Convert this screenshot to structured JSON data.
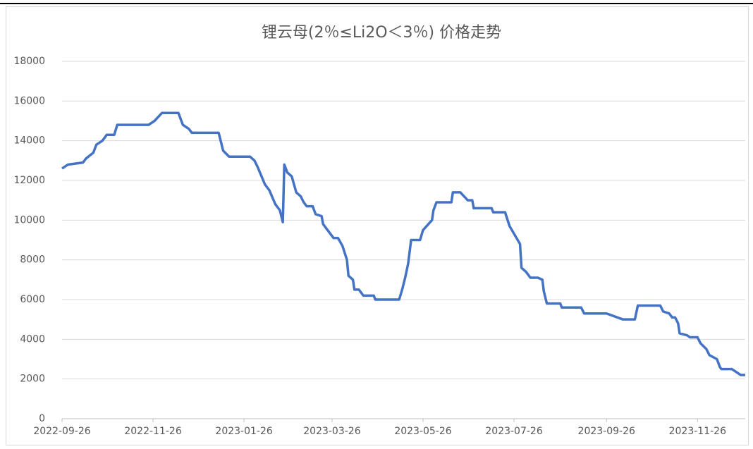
{
  "chart_data": {
    "type": "line",
    "title": "锂云母(2％≤Li2O＜3％) 价格走势",
    "x": [
      "2022-09-26",
      "2022-09-30",
      "2022-10-10",
      "2022-10-12",
      "2022-10-17",
      "2022-10-19",
      "2022-10-23",
      "2022-10-26",
      "2022-10-31",
      "2022-11-02",
      "2022-11-23",
      "2022-11-27",
      "2022-12-02",
      "2022-12-13",
      "2022-12-16",
      "2022-12-20",
      "2022-12-22",
      "2023-01-09",
      "2023-01-12",
      "2023-01-16",
      "2023-01-30",
      "2023-02-02",
      "2023-02-04",
      "2023-02-09",
      "2023-02-12",
      "2023-02-16",
      "2023-02-19",
      "2023-02-21",
      "2023-02-22",
      "2023-02-24",
      "2023-02-27",
      "2023-03-02",
      "2023-03-05",
      "2023-03-07",
      "2023-03-09",
      "2023-03-13",
      "2023-03-15",
      "2023-03-19",
      "2023-03-20",
      "2023-03-23",
      "2023-03-27",
      "2023-03-30",
      "2023-04-02",
      "2023-04-05",
      "2023-04-06",
      "2023-04-09",
      "2023-04-10",
      "2023-04-13",
      "2023-04-16",
      "2023-04-23",
      "2023-04-24",
      "2023-05-10",
      "2023-05-12",
      "2023-05-14",
      "2023-05-16",
      "2023-05-18",
      "2023-05-24",
      "2023-05-26",
      "2023-06-01",
      "2023-06-02",
      "2023-06-04",
      "2023-06-14",
      "2023-06-15",
      "2023-06-20",
      "2023-06-25",
      "2023-06-28",
      "2023-06-29",
      "2023-07-11",
      "2023-07-12",
      "2023-07-20",
      "2023-07-23",
      "2023-07-30",
      "2023-07-31",
      "2023-08-03",
      "2023-08-06",
      "2023-08-11",
      "2023-08-14",
      "2023-08-15",
      "2023-08-17",
      "2023-08-26",
      "2023-08-27",
      "2023-09-09",
      "2023-09-11",
      "2023-09-14",
      "2023-09-26",
      "2023-10-07",
      "2023-10-15",
      "2023-10-17",
      "2023-11-01",
      "2023-11-03",
      "2023-11-07",
      "2023-11-09",
      "2023-11-11",
      "2023-11-13",
      "2023-11-14",
      "2023-11-19",
      "2023-11-21",
      "2023-11-26",
      "2023-11-28",
      "2023-12-02",
      "2023-12-04",
      "2023-12-09",
      "2023-12-11",
      "2023-12-12",
      "2023-12-19",
      "2023-12-25",
      "2023-12-28"
    ],
    "series": [
      {
        "name": "锂云母",
        "color": "#4472c4",
        "values": [
          12600,
          12800,
          12900,
          13100,
          13400,
          13800,
          14000,
          14300,
          14300,
          14800,
          14800,
          15000,
          15400,
          15400,
          14800,
          14600,
          14400,
          14400,
          13500,
          13200,
          13200,
          13000,
          12700,
          11800,
          11500,
          10800,
          10500,
          9900,
          12800,
          12400,
          12200,
          11400,
          11200,
          10900,
          10700,
          10700,
          10300,
          10200,
          9800,
          9500,
          9100,
          9100,
          8700,
          8000,
          7200,
          7000,
          6500,
          6500,
          6200,
          6200,
          6000,
          6000,
          6500,
          7100,
          7800,
          9000,
          9000,
          9500,
          10000,
          10500,
          10900,
          10900,
          11400,
          11400,
          11000,
          11000,
          10600,
          10600,
          10400,
          10400,
          9700,
          8800,
          7600,
          7400,
          7100,
          7100,
          7000,
          6400,
          5800,
          5800,
          5600,
          5600,
          5300,
          5300,
          5300,
          5000,
          5000,
          5700,
          5700,
          5400,
          5300,
          5100,
          5100,
          4800,
          4300,
          4200,
          4100,
          4100,
          3800,
          3500,
          3200,
          3000,
          2600,
          2500,
          2500,
          2200,
          2200
        ]
      }
    ],
    "xlim": [
      "2022-09-26",
      "2023-12-28"
    ],
    "xticks": [
      "2022-09-26",
      "2022-11-26",
      "2023-01-26",
      "2023-03-26",
      "2023-05-26",
      "2023-07-26",
      "2023-09-26",
      "2023-11-26"
    ],
    "ylim": [
      0,
      18000
    ],
    "yticks": [
      0,
      2000,
      4000,
      6000,
      8000,
      10000,
      12000,
      14000,
      16000,
      18000
    ],
    "grid": true
  }
}
